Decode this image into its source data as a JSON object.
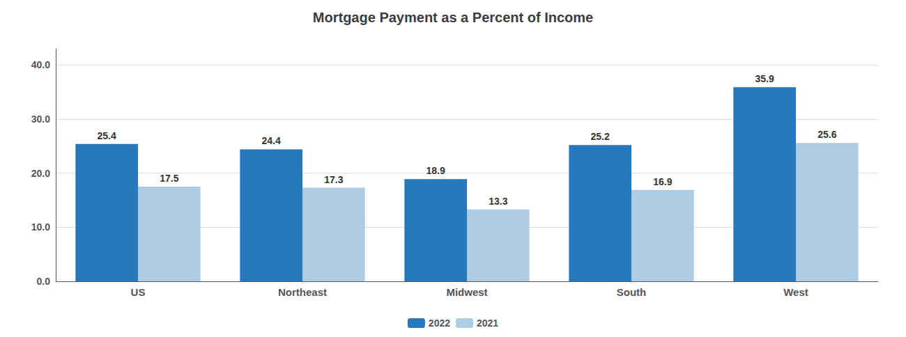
{
  "chart_data": {
    "type": "bar",
    "title": "Mortgage Payment as a Percent of Income",
    "categories": [
      "US",
      "Northeast",
      "Midwest",
      "South",
      "West"
    ],
    "series": [
      {
        "name": "2022",
        "color": "#2878BE",
        "values": [
          25.4,
          24.4,
          18.9,
          25.2,
          35.9
        ]
      },
      {
        "name": "2021",
        "color": "#AECDE4",
        "values": [
          17.5,
          17.3,
          13.3,
          16.9,
          25.6
        ]
      }
    ],
    "ylim": [
      0,
      43
    ],
    "yticks": [
      {
        "value": 0.0,
        "label": "0.0"
      },
      {
        "value": 10.0,
        "label": "10.0"
      },
      {
        "value": 20.0,
        "label": "20.0"
      },
      {
        "value": 30.0,
        "label": "30.0"
      },
      {
        "value": 40.0,
        "label": "40.0"
      }
    ],
    "grid": true,
    "legend": "bottom",
    "data_labels": true
  }
}
